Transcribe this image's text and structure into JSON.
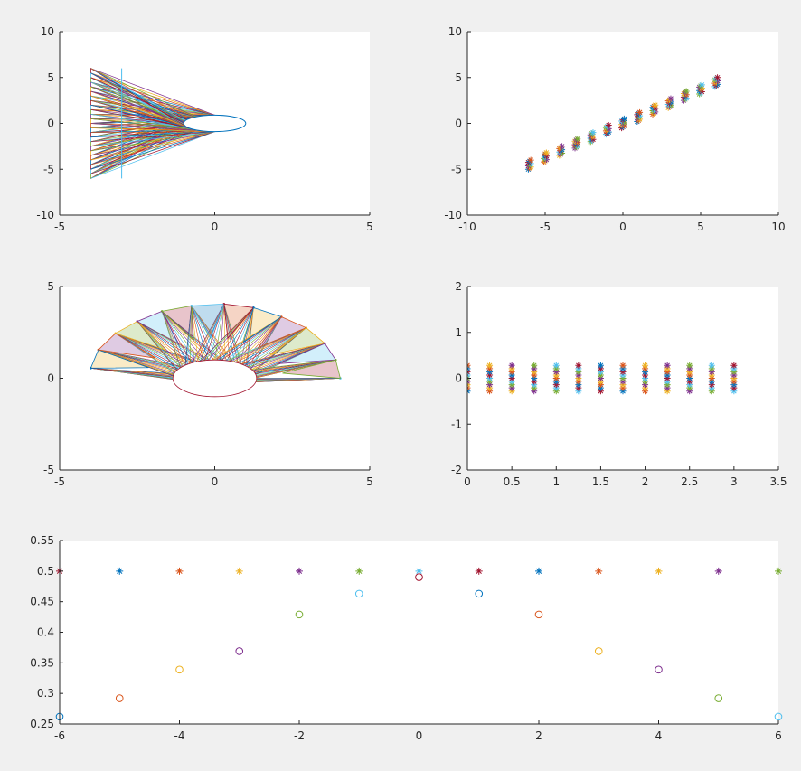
{
  "figure": {
    "background": "#f0f0f0",
    "axes_color": "#262626",
    "colors": [
      "#0072bd",
      "#d95319",
      "#edb120",
      "#7e2f8e",
      "#77ac30",
      "#4dbeee",
      "#a2142f"
    ]
  },
  "chart_data": [
    {
      "type": "line",
      "panel": "top-left",
      "title": "",
      "xlabel": "",
      "ylabel": "",
      "xlim": [
        -5,
        5
      ],
      "ylim": [
        -10,
        10
      ],
      "xticks": [
        -5,
        0,
        5
      ],
      "yticks": [
        -10,
        -5,
        0,
        5,
        10
      ],
      "grid": false,
      "description_series": {
        "star_points": {
          "x": -4,
          "y_range": [
            -6,
            6
          ],
          "count": 25
        },
        "ellipse": {
          "center": [
            0,
            0
          ],
          "semi_axes": [
            1,
            0.9
          ]
        },
        "vertical_line": {
          "x": -3,
          "y_range": [
            -6,
            6
          ]
        }
      }
    },
    {
      "type": "scatter",
      "panel": "top-right",
      "title": "",
      "xlabel": "",
      "ylabel": "",
      "xlim": [
        -10,
        10
      ],
      "ylim": [
        -10,
        10
      ],
      "xticks": [
        -10,
        -5,
        0,
        5,
        10
      ],
      "yticks": [
        -10,
        -5,
        0,
        5,
        10
      ],
      "grid": false,
      "x": [
        -6,
        -5,
        -4,
        -3,
        -2,
        -1,
        0,
        1,
        2,
        3,
        4,
        5,
        6
      ],
      "y": [
        -4.5,
        -3.7,
        -3.0,
        -2.2,
        -1.5,
        -0.7,
        0,
        0.7,
        1.5,
        2.2,
        3.0,
        3.7,
        4.5
      ],
      "spread": 0.5,
      "marker": "*"
    },
    {
      "type": "line",
      "panel": "middle-left",
      "title": "",
      "xlabel": "",
      "ylabel": "",
      "xlim": [
        -5,
        5
      ],
      "ylim": [
        -5,
        5
      ],
      "xticks": [
        -5,
        0,
        5
      ],
      "yticks": [
        -5,
        0,
        5
      ],
      "grid": false,
      "star_tips": [
        [
          -4.0,
          0.55
        ],
        [
          -3.75,
          1.55
        ],
        [
          -3.2,
          2.45
        ],
        [
          -2.5,
          3.1
        ],
        [
          -1.7,
          3.65
        ],
        [
          -0.75,
          3.95
        ],
        [
          0.3,
          4.05
        ],
        [
          1.25,
          3.85
        ],
        [
          2.15,
          3.35
        ],
        [
          2.95,
          2.75
        ],
        [
          3.55,
          1.9
        ],
        [
          3.9,
          1.0
        ],
        [
          4.05,
          0.0
        ]
      ],
      "ellipse": {
        "center": [
          0,
          0
        ],
        "semi_axes": [
          1,
          1
        ]
      }
    },
    {
      "type": "scatter",
      "panel": "middle-right",
      "title": "",
      "xlabel": "",
      "ylabel": "",
      "xlim": [
        0,
        3.5
      ],
      "ylim": [
        -2,
        2
      ],
      "xticks": [
        0,
        0.5,
        1,
        1.5,
        2,
        2.5,
        3,
        3.5
      ],
      "yticks": [
        -2,
        -1,
        0,
        1,
        2
      ],
      "grid": false,
      "x": [
        0,
        0.25,
        0.5,
        0.75,
        1,
        1.25,
        1.5,
        1.75,
        2,
        2.25,
        2.5,
        2.75,
        3
      ],
      "y_range": [
        -0.28,
        0.28
      ],
      "marker": "*"
    },
    {
      "type": "scatter",
      "panel": "bottom",
      "title": "",
      "xlabel": "",
      "ylabel": "",
      "xlim": [
        -6,
        6
      ],
      "ylim": [
        0.25,
        0.55
      ],
      "xticks": [
        -6,
        -4,
        -2,
        0,
        2,
        4,
        6
      ],
      "yticks": [
        0.25,
        0.3,
        0.35,
        0.4,
        0.45,
        0.5,
        0.55
      ],
      "grid": false,
      "series": [
        {
          "marker": "*",
          "x": [
            -6,
            -5,
            -4,
            -3,
            -2,
            -1,
            0,
            1,
            2,
            3,
            4,
            5,
            6
          ],
          "values": [
            0.5,
            0.5,
            0.5,
            0.5,
            0.5,
            0.5,
            0.5,
            0.5,
            0.5,
            0.5,
            0.5,
            0.5,
            0.5
          ]
        },
        {
          "marker": "o",
          "x": [
            -6,
            -5,
            -4,
            -3,
            -2,
            -1,
            0,
            1,
            2,
            3,
            4,
            5,
            6
          ],
          "values": [
            0.262,
            0.292,
            0.339,
            0.369,
            0.429,
            0.463,
            0.49,
            0.463,
            0.429,
            0.369,
            0.339,
            0.292,
            0.262
          ]
        }
      ]
    }
  ]
}
